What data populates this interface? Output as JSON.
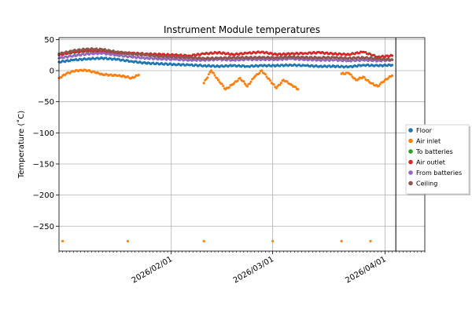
{
  "chart_data": {
    "type": "scatter",
    "title": "Instrument Module temperatures",
    "xlabel": "",
    "ylabel": "Temperature (˚C)",
    "ylim": [
      -290,
      53
    ],
    "xlim": [
      "2026-01-01",
      "2026-04-12"
    ],
    "y_ticks": [
      50,
      0,
      -50,
      -100,
      -150,
      -200,
      -250
    ],
    "x_ticks": [
      {
        "date": "2026-02-01",
        "label": "2026/02/01"
      },
      {
        "date": "2026-03-01",
        "label": "2026/03/01"
      },
      {
        "date": "2026-04-01",
        "label": "2026/04/01"
      }
    ],
    "grid": true,
    "legend_position": "right",
    "marker_line": {
      "date": "2026-04-04"
    },
    "series": [
      {
        "name": "Floor",
        "color": "#1f77b4",
        "points": [
          [
            "2026-01-01",
            14
          ],
          [
            "2026-01-05",
            17
          ],
          [
            "2026-01-09",
            19
          ],
          [
            "2026-01-13",
            20
          ],
          [
            "2026-01-17",
            18
          ],
          [
            "2026-01-21",
            15
          ],
          [
            "2026-01-25",
            12
          ],
          [
            "2026-01-29",
            11
          ],
          [
            "2026-02-02",
            10
          ],
          [
            "2026-02-06",
            9
          ],
          [
            "2026-02-10",
            8
          ],
          [
            "2026-02-14",
            7
          ],
          [
            "2026-02-18",
            8
          ],
          [
            "2026-02-22",
            7
          ],
          [
            "2026-02-26",
            8
          ],
          [
            "2026-03-02",
            8
          ],
          [
            "2026-03-06",
            9
          ],
          [
            "2026-03-10",
            8
          ],
          [
            "2026-03-14",
            7
          ],
          [
            "2026-03-18",
            7
          ],
          [
            "2026-03-22",
            6
          ],
          [
            "2026-03-26",
            9
          ],
          [
            "2026-03-30",
            8
          ],
          [
            "2026-04-03",
            9
          ]
        ]
      },
      {
        "name": "Air inlet",
        "color": "#ff7f0e",
        "points": [
          [
            "2026-01-01",
            -12
          ],
          [
            "2026-01-03",
            -5
          ],
          [
            "2026-01-05",
            -1
          ],
          [
            "2026-01-07",
            1
          ],
          [
            "2026-01-09",
            0
          ],
          [
            "2026-01-11",
            -3
          ],
          [
            "2026-01-13",
            -6
          ],
          [
            "2026-01-17",
            -8
          ],
          [
            "2026-01-19",
            -9
          ],
          [
            "2026-01-21",
            -12
          ],
          [
            "2026-01-23",
            -7
          ],
          [
            "2026-02-10",
            -20
          ],
          [
            "2026-02-12",
            0
          ],
          [
            "2026-02-14",
            -15
          ],
          [
            "2026-02-16",
            -30
          ],
          [
            "2026-02-18",
            -22
          ],
          [
            "2026-02-20",
            -12
          ],
          [
            "2026-02-22",
            -25
          ],
          [
            "2026-02-24",
            -10
          ],
          [
            "2026-02-26",
            0
          ],
          [
            "2026-03-02",
            -28
          ],
          [
            "2026-03-04",
            -15
          ],
          [
            "2026-03-06",
            -22
          ],
          [
            "2026-03-08",
            -30
          ],
          [
            "2026-03-20",
            -5
          ],
          [
            "2026-03-22",
            -4
          ],
          [
            "2026-03-24",
            -15
          ],
          [
            "2026-03-26",
            -10
          ],
          [
            "2026-03-28",
            -20
          ],
          [
            "2026-03-30",
            -25
          ],
          [
            "2026-04-01",
            -15
          ],
          [
            "2026-04-03",
            -8
          ],
          [
            "2026-01-02",
            -274
          ],
          [
            "2026-01-20",
            -274
          ],
          [
            "2026-02-10",
            -274
          ],
          [
            "2026-03-01",
            -274
          ],
          [
            "2026-03-20",
            -274
          ],
          [
            "2026-03-28",
            -274
          ]
        ]
      },
      {
        "name": "To batteries",
        "color": "#2ca02c",
        "points": [
          [
            "2026-01-03",
            28
          ],
          [
            "2026-01-08",
            31
          ],
          [
            "2026-01-12",
            30
          ],
          [
            "2026-01-18",
            27
          ]
        ]
      },
      {
        "name": "Air outlet",
        "color": "#d62728",
        "points": [
          [
            "2026-01-01",
            25
          ],
          [
            "2026-01-05",
            30
          ],
          [
            "2026-01-09",
            32
          ],
          [
            "2026-01-13",
            31
          ],
          [
            "2026-01-17",
            29
          ],
          [
            "2026-01-21",
            28
          ],
          [
            "2026-01-25",
            27
          ],
          [
            "2026-01-29",
            26
          ],
          [
            "2026-02-02",
            25
          ],
          [
            "2026-02-06",
            24
          ],
          [
            "2026-02-10",
            27
          ],
          [
            "2026-02-14",
            29
          ],
          [
            "2026-02-18",
            26
          ],
          [
            "2026-02-22",
            28
          ],
          [
            "2026-02-26",
            30
          ],
          [
            "2026-03-02",
            26
          ],
          [
            "2026-03-06",
            27
          ],
          [
            "2026-03-10",
            28
          ],
          [
            "2026-03-14",
            29
          ],
          [
            "2026-03-18",
            27
          ],
          [
            "2026-03-22",
            26
          ],
          [
            "2026-03-26",
            30
          ],
          [
            "2026-03-30",
            22
          ],
          [
            "2026-04-03",
            24
          ]
        ]
      },
      {
        "name": "From batteries",
        "color": "#9467bd",
        "points": [
          [
            "2026-01-01",
            20
          ],
          [
            "2026-01-05",
            24
          ],
          [
            "2026-01-09",
            27
          ],
          [
            "2026-01-13",
            28
          ],
          [
            "2026-01-17",
            25
          ],
          [
            "2026-01-21",
            22
          ],
          [
            "2026-01-25",
            20
          ],
          [
            "2026-01-29",
            19
          ],
          [
            "2026-02-02",
            18
          ],
          [
            "2026-02-06",
            17
          ],
          [
            "2026-02-10",
            17
          ],
          [
            "2026-02-14",
            18
          ],
          [
            "2026-02-18",
            17
          ],
          [
            "2026-02-22",
            18
          ],
          [
            "2026-02-26",
            18
          ],
          [
            "2026-03-02",
            18
          ],
          [
            "2026-03-06",
            19
          ],
          [
            "2026-03-10",
            18
          ],
          [
            "2026-03-14",
            17
          ],
          [
            "2026-03-18",
            17
          ],
          [
            "2026-03-22",
            16
          ],
          [
            "2026-03-26",
            17
          ],
          [
            "2026-03-30",
            16
          ],
          [
            "2026-04-03",
            17
          ]
        ]
      },
      {
        "name": "Ceiling",
        "color": "#8c564b",
        "points": [
          [
            "2026-01-01",
            27
          ],
          [
            "2026-01-05",
            32
          ],
          [
            "2026-01-09",
            35
          ],
          [
            "2026-01-13",
            34
          ],
          [
            "2026-01-17",
            30
          ],
          [
            "2026-01-21",
            27
          ],
          [
            "2026-01-25",
            25
          ],
          [
            "2026-01-29",
            23
          ],
          [
            "2026-02-02",
            22
          ],
          [
            "2026-02-06",
            21
          ],
          [
            "2026-02-10",
            20
          ],
          [
            "2026-02-14",
            20
          ],
          [
            "2026-02-18",
            21
          ],
          [
            "2026-02-22",
            21
          ],
          [
            "2026-02-26",
            21
          ],
          [
            "2026-03-02",
            21
          ],
          [
            "2026-03-06",
            22
          ],
          [
            "2026-03-10",
            21
          ],
          [
            "2026-03-14",
            21
          ],
          [
            "2026-03-18",
            21
          ],
          [
            "2026-03-22",
            20
          ],
          [
            "2026-03-26",
            21
          ],
          [
            "2026-03-30",
            19
          ],
          [
            "2026-04-03",
            18
          ]
        ]
      }
    ]
  }
}
